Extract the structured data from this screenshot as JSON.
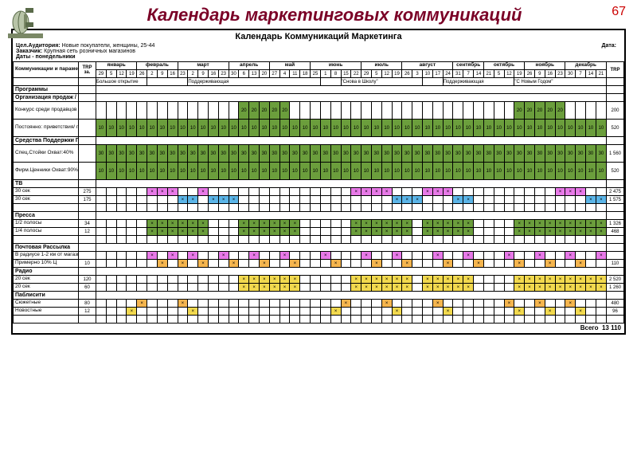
{
  "page_number": "67",
  "slide_title": "Календарь маркетинговых коммуникаций",
  "sheet_title": "Календарь Коммуникаций Маркетинга",
  "meta": {
    "audience_lbl": "Цел.Аудитория:",
    "audience_val": "Новые покупатели, женщины, 25-44",
    "client_lbl": "Заказчик:",
    "client_val": "Крупная сеть розничных магазинов",
    "dates_lbl": "Даты - понедельники",
    "date_lbl": "Дата:"
  },
  "header": {
    "col1": "Коммуникации и параметры",
    "trp": "TRP за.",
    "months": [
      "январь",
      "февраль",
      "март",
      "апрель",
      "май",
      "июнь",
      "июль",
      "август",
      "сентябрь",
      "октябрь",
      "ноябрь",
      "декабрь"
    ],
    "weeks": [
      "29",
      "5",
      "12",
      "19",
      "26",
      "2",
      "9",
      "16",
      "23",
      "2",
      "9",
      "16",
      "23",
      "30",
      "6",
      "13",
      "20",
      "27",
      "4",
      "11",
      "18",
      "25",
      "1",
      "8",
      "15",
      "22",
      "29",
      "5",
      "12",
      "19",
      "26",
      "3",
      "10",
      "17",
      "24",
      "31",
      "7",
      "14",
      "21",
      "5",
      "12",
      "19",
      "26",
      "9",
      "16",
      "23",
      "30",
      "7",
      "14",
      "21"
    ],
    "trp_end": "TRP"
  },
  "campaigns": {
    "c1": "Большое открытие",
    "c2": "Поддерживающая",
    "c3": "\"Снова в Школу\"",
    "c4": "Поддерживающая",
    "c5": "\"С Новым Годом\""
  },
  "sections": {
    "programs": "Программы",
    "org": "Организация продаж / Обслуживание",
    "konkurs1": "Конкурс среди продавцов Охват:40%",
    "post": "Постоянно: приветствия/ прощания Охват: 80%",
    "support": "Средства Поддержки Продаж",
    "spec": "Спец.Стойки Охват:40%",
    "firm": "Фирм.Ценники Охват:90%",
    "tv": "ТВ",
    "tv30a": "30 сек",
    "tv30a_trp": "275",
    "tv30b": "30 сек",
    "tv30b_trp": "175",
    "press": "Пресса",
    "p12": "1/2 полосы",
    "p12_trp": "34",
    "p14": "1/4 полосы",
    "p14_trp": "12",
    "mail": "Почтовая Рассылка",
    "mail1": "В радиусе 1-2 км от магазина",
    "mail2": "Примерно 10% Ц",
    "mail2_trp": "10",
    "radio": "Радио",
    "r20a": "20 сек",
    "r20a_trp": "120",
    "r20b": "20 сек",
    "r20b_trp": "60",
    "pub": "Паблисити",
    "suj": "Сюжетные",
    "suj_trp": "80",
    "nov": "Новостные",
    "nov_trp": "12"
  },
  "row_trp": {
    "konkurs": "200",
    "post": "520",
    "spec": "1 560",
    "firm": "520",
    "tv30a": "2 475",
    "tv30b": "1 575",
    "p12": "1 326",
    "p14": "468",
    "mail2": "110",
    "r20a": "2 520",
    "r20b": "1 260",
    "suj": "480",
    "nov": "96"
  },
  "total_lbl": "Всего",
  "total_val": "13 110",
  "colors": {
    "green": "#6b9e3c",
    "blue": "#5bb5e8",
    "pink": "#e879e8",
    "yellow": "#f2d94e",
    "orange": "#f5b54e",
    "title": "#7a0026"
  },
  "cell_patterns": {
    "konkurs": {
      "fill": "g",
      "val": "20",
      "ranges": [
        [
          14,
          18
        ],
        [
          41,
          45
        ]
      ]
    },
    "post": {
      "fill": "g",
      "val": "10",
      "ranges": [
        [
          0,
          49
        ]
      ]
    },
    "spec": {
      "fill": "g",
      "val": "30",
      "ranges": [
        [
          0,
          49
        ]
      ]
    },
    "firm": {
      "fill": "g",
      "val": "10",
      "ranges": [
        [
          0,
          49
        ]
      ]
    },
    "tv30a": {
      "fill": "p",
      "val": "×",
      "ranges": [
        [
          5,
          7
        ],
        [
          10,
          10
        ],
        [
          25,
          28
        ],
        [
          32,
          34
        ],
        [
          45,
          47
        ]
      ]
    },
    "tv30b": {
      "fill": "b",
      "val": "×",
      "ranges": [
        [
          8,
          9
        ],
        [
          11,
          13
        ],
        [
          29,
          31
        ],
        [
          35,
          36
        ],
        [
          48,
          49
        ]
      ]
    },
    "p12": {
      "fill": "g",
      "val": "×",
      "ranges": [
        [
          5,
          10
        ],
        [
          14,
          19
        ],
        [
          25,
          30
        ],
        [
          32,
          36
        ],
        [
          41,
          49
        ]
      ]
    },
    "p14": {
      "fill": "g",
      "val": "×",
      "ranges": [
        [
          5,
          10
        ],
        [
          14,
          19
        ],
        [
          25,
          30
        ],
        [
          32,
          36
        ],
        [
          41,
          49
        ]
      ]
    },
    "mail1": {
      "fill": "p",
      "val": "×",
      "ranges": [
        [
          5,
          5
        ],
        [
          7,
          7
        ],
        [
          9,
          9
        ],
        [
          12,
          12
        ],
        [
          15,
          15
        ],
        [
          18,
          18
        ],
        [
          22,
          22
        ],
        [
          26,
          26
        ],
        [
          29,
          29
        ],
        [
          33,
          33
        ],
        [
          36,
          36
        ],
        [
          40,
          40
        ],
        [
          43,
          43
        ],
        [
          46,
          46
        ],
        [
          49,
          49
        ]
      ]
    },
    "mail2": {
      "fill": "o",
      "val": "×",
      "ranges": [
        [
          6,
          6
        ],
        [
          8,
          8
        ],
        [
          10,
          10
        ],
        [
          13,
          13
        ],
        [
          16,
          16
        ],
        [
          19,
          19
        ],
        [
          23,
          23
        ],
        [
          27,
          27
        ],
        [
          30,
          30
        ],
        [
          34,
          34
        ],
        [
          37,
          37
        ],
        [
          41,
          41
        ],
        [
          44,
          44
        ],
        [
          47,
          47
        ]
      ]
    },
    "r20a": {
      "fill": "y",
      "val": "×",
      "ranges": [
        [
          14,
          19
        ],
        [
          25,
          30
        ],
        [
          32,
          36
        ],
        [
          41,
          49
        ]
      ]
    },
    "r20b": {
      "fill": "y",
      "val": "×",
      "ranges": [
        [
          14,
          19
        ],
        [
          25,
          30
        ],
        [
          32,
          36
        ],
        [
          41,
          49
        ]
      ]
    },
    "suj": {
      "fill": "o",
      "val": "×",
      "ranges": [
        [
          4,
          4
        ],
        [
          8,
          8
        ],
        [
          24,
          24
        ],
        [
          28,
          28
        ],
        [
          33,
          33
        ],
        [
          40,
          40
        ],
        [
          43,
          43
        ],
        [
          46,
          46
        ]
      ]
    },
    "nov": {
      "fill": "y",
      "val": "×",
      "ranges": [
        [
          3,
          3
        ],
        [
          9,
          9
        ],
        [
          23,
          23
        ],
        [
          29,
          29
        ],
        [
          34,
          34
        ],
        [
          41,
          41
        ],
        [
          44,
          44
        ],
        [
          47,
          47
        ]
      ]
    }
  }
}
